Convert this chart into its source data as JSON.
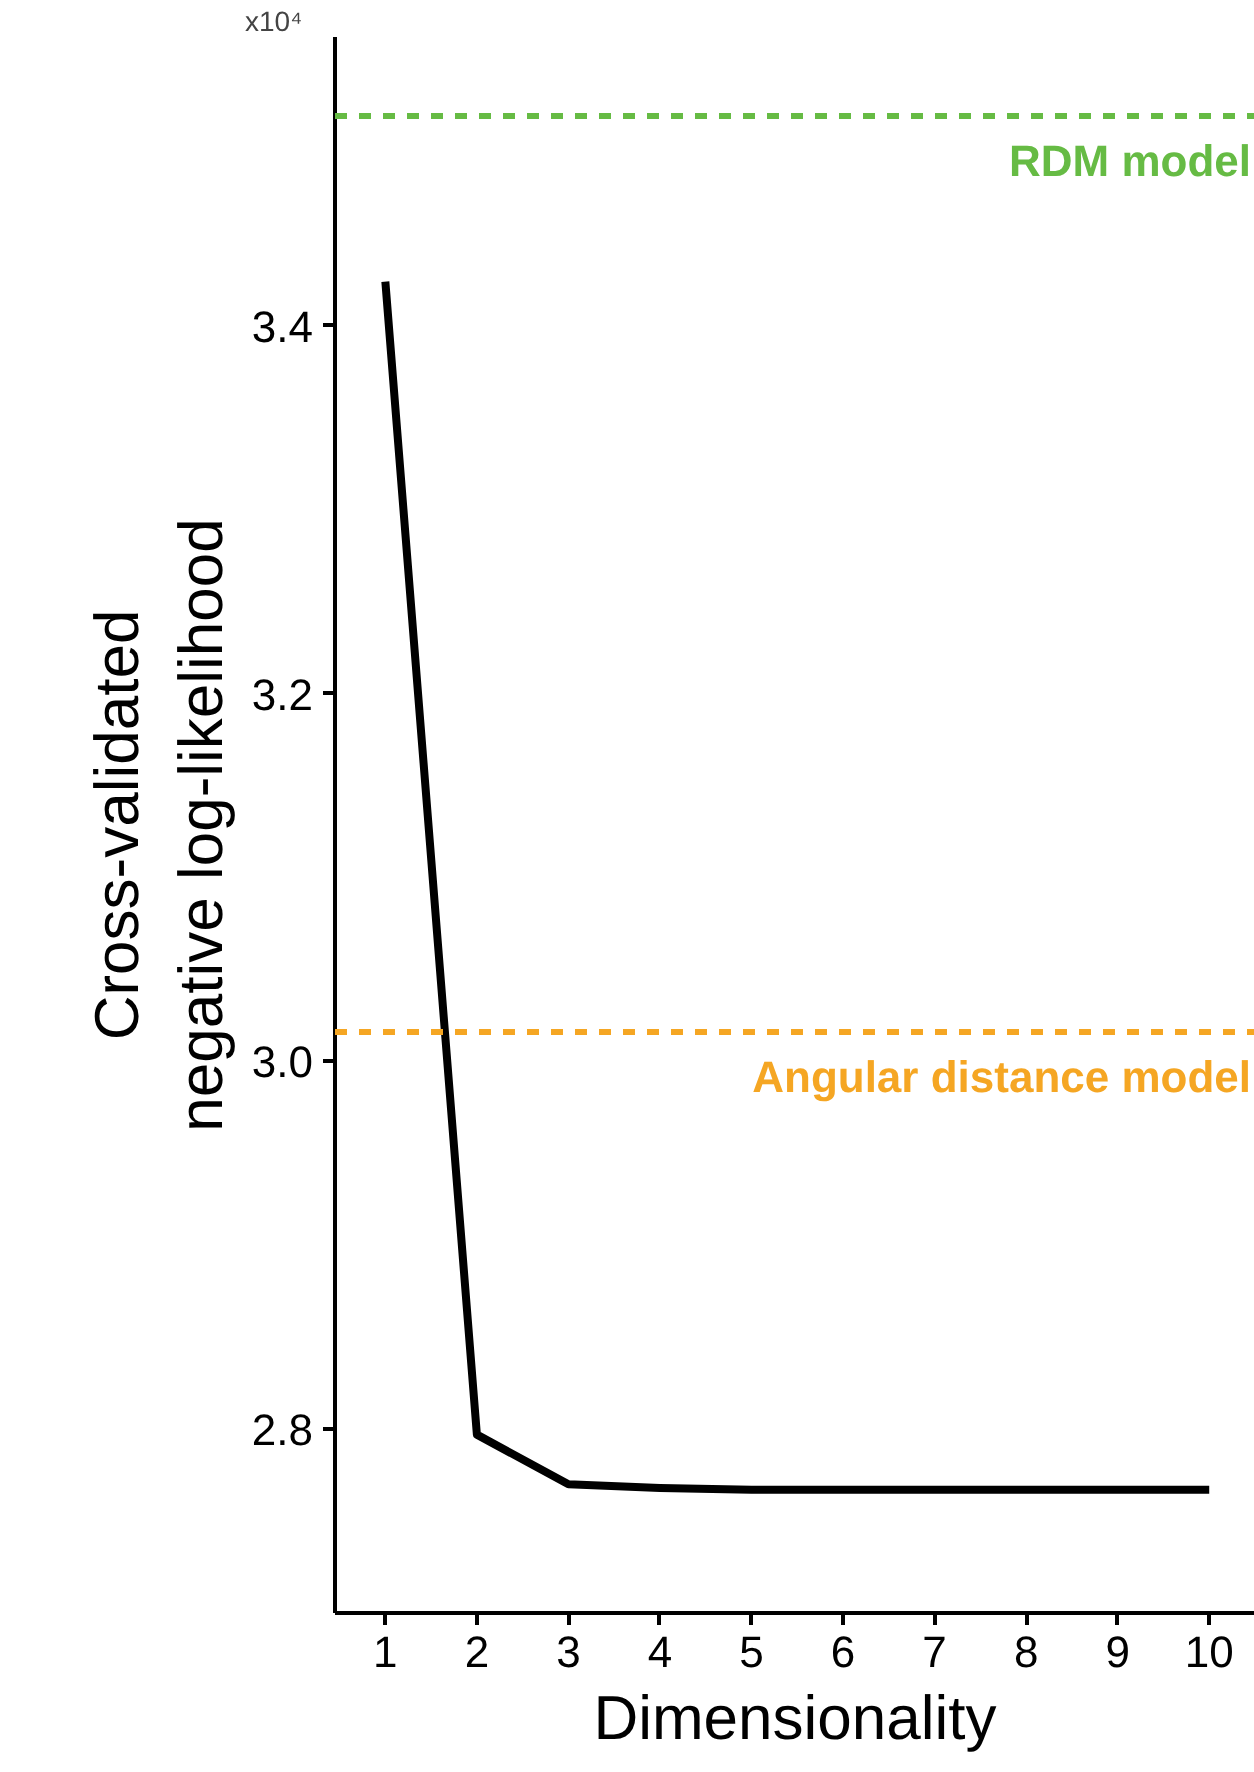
{
  "chart_data": {
    "type": "line",
    "xlabel": "Dimensionality",
    "ylabel": "Cross-validated\nnegative log-likelihood",
    "x": [
      1,
      2,
      3,
      4,
      5,
      6,
      7,
      8,
      9,
      10
    ],
    "series": [
      {
        "color": "#000000",
        "values": [
          3.424,
          2.797,
          2.77,
          2.768,
          2.767,
          2.767,
          2.767,
          2.767,
          2.767,
          2.767
        ]
      }
    ],
    "xlim": [
      0.45,
      10.5
    ],
    "xticks": [
      1,
      2,
      3,
      4,
      5,
      6,
      7,
      8,
      9,
      10
    ],
    "ylim": [
      2.7,
      3.557
    ],
    "yticks": [
      2.8,
      {
        "value": 3.0,
        "label": "3.0"
      },
      3.2,
      3.4
    ],
    "ref_lines": [
      {
        "axis": "y",
        "value": 3.514,
        "label": "RDM model",
        "color": "#66bb44",
        "line_style": "dashed"
      },
      {
        "axis": "y",
        "value": 3.016,
        "label": "Angular distance model",
        "color": "#f5a623",
        "line_style": "dashed"
      }
    ],
    "annotations": [
      "x10⁴"
    ],
    "grid": false,
    "marker": "none",
    "line_style": "solid"
  }
}
